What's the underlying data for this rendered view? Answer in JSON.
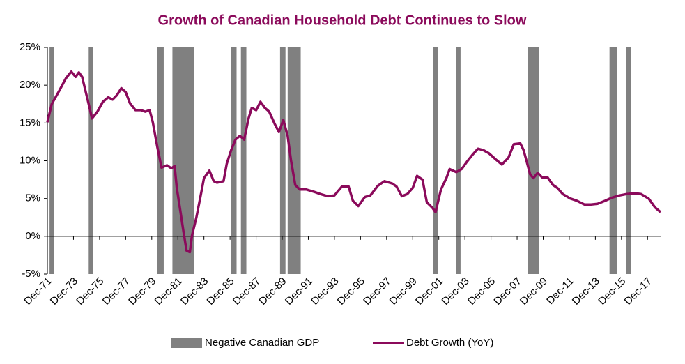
{
  "chart_data": {
    "type": "line",
    "title": "Growth of Canadian Household Debt Continues to Slow",
    "x": [
      "1971-12",
      "1972-04",
      "1972-11",
      "1973-05",
      "1973-10",
      "1974-02",
      "1974-05",
      "1974-08",
      "1974-11",
      "1975-02",
      "1975-05",
      "1975-10",
      "1976-03",
      "1976-08",
      "1976-12",
      "1977-04",
      "1977-08",
      "1977-12",
      "1978-04",
      "1978-09",
      "1979-02",
      "1979-06",
      "1979-10",
      "1980-01",
      "1980-05",
      "1980-09",
      "1981-02",
      "1981-06",
      "1981-09",
      "1981-11",
      "1982-02",
      "1982-05",
      "1982-08",
      "1982-11",
      "1983-01",
      "1983-05",
      "1983-09",
      "1983-12",
      "1984-05",
      "1984-09",
      "1984-12",
      "1985-06",
      "1985-09",
      "1986-01",
      "1986-05",
      "1986-09",
      "1987-01",
      "1987-05",
      "1987-08",
      "1987-12",
      "1988-04",
      "1988-08",
      "1988-12",
      "1989-05",
      "1989-09",
      "1990-01",
      "1990-05",
      "1990-08",
      "1990-12",
      "1991-04",
      "1991-10",
      "1992-05",
      "1992-11",
      "1993-06",
      "1993-12",
      "1994-07",
      "1995-01",
      "1995-05",
      "1995-10",
      "1996-04",
      "1996-09",
      "1997-04",
      "1997-10",
      "1998-05",
      "1998-09",
      "1999-02",
      "1999-07",
      "1999-12",
      "2000-04",
      "2000-09",
      "2001-01",
      "2001-06",
      "2001-09",
      "2002-02",
      "2002-07",
      "2002-10",
      "2003-04",
      "2003-09",
      "2004-02",
      "2004-07",
      "2004-12",
      "2005-05",
      "2005-10",
      "2006-05",
      "2006-10",
      "2007-04",
      "2007-09",
      "2008-03",
      "2008-06",
      "2008-12",
      "2009-03",
      "2009-07",
      "2009-11",
      "2010-04",
      "2010-09",
      "2011-01",
      "2011-06",
      "2012-01",
      "2012-07",
      "2013-02",
      "2013-08",
      "2014-02",
      "2014-09",
      "2015-03",
      "2015-10",
      "2016-05",
      "2016-12",
      "2017-06",
      "2018-01",
      "2018-07",
      "2018-12"
    ],
    "series": [
      {
        "name": "Debt Growth (YoY)",
        "color": "#8b0a5b",
        "values": [
          15.1,
          17.5,
          19.3,
          20.9,
          21.8,
          21.1,
          21.7,
          21.1,
          19.3,
          17.5,
          15.6,
          16.5,
          17.8,
          18.4,
          18.1,
          18.7,
          19.6,
          19.1,
          17.6,
          16.7,
          16.7,
          16.5,
          16.7,
          15.1,
          11.9,
          9.1,
          9.4,
          9.0,
          9.3,
          6.4,
          3.6,
          0.8,
          -1.9,
          -2.1,
          0.1,
          2.5,
          5.4,
          7.7,
          8.7,
          7.3,
          7.1,
          7.3,
          9.6,
          11.4,
          12.8,
          13.3,
          12.8,
          15.6,
          17.0,
          16.7,
          17.8,
          17.0,
          16.5,
          14.9,
          13.8,
          15.4,
          13.3,
          10.1,
          6.8,
          6.2,
          6.2,
          5.9,
          5.6,
          5.3,
          5.4,
          6.6,
          6.6,
          4.7,
          4.0,
          5.2,
          5.4,
          6.7,
          7.3,
          7.0,
          6.6,
          5.3,
          5.6,
          6.4,
          8.0,
          7.5,
          4.5,
          3.8,
          3.2,
          6.2,
          7.7,
          8.9,
          8.5,
          8.9,
          9.9,
          10.8,
          11.6,
          11.4,
          11.0,
          10.1,
          9.5,
          10.4,
          12.2,
          12.3,
          11.4,
          8.2,
          7.7,
          8.4,
          7.8,
          7.8,
          6.8,
          6.4,
          5.6,
          5.0,
          4.7,
          4.2,
          4.2,
          4.3,
          4.7,
          5.1,
          5.4,
          5.6,
          5.7,
          5.6,
          5.0,
          3.8,
          3.2
        ]
      }
    ],
    "shaded": {
      "name": "Negative Canadian GDP",
      "color": "#808080",
      "periods": [
        {
          "start": "1972-02",
          "end": "1972-06"
        },
        {
          "start": "1975-02",
          "end": "1975-06"
        },
        {
          "start": "1980-05",
          "end": "1980-11"
        },
        {
          "start": "1981-07",
          "end": "1983-03"
        },
        {
          "start": "1986-01",
          "end": "1986-06"
        },
        {
          "start": "1986-10",
          "end": "1987-03"
        },
        {
          "start": "1989-10",
          "end": "1990-03"
        },
        {
          "start": "1990-05",
          "end": "1991-05"
        },
        {
          "start": "2001-07",
          "end": "2001-11"
        },
        {
          "start": "2003-04",
          "end": "2003-08"
        },
        {
          "start": "2008-10",
          "end": "2009-08"
        },
        {
          "start": "2015-01",
          "end": "2015-08"
        },
        {
          "start": "2016-04",
          "end": "2016-09"
        }
      ]
    },
    "xlim": [
      "1971-12",
      "2018-12"
    ],
    "xticks": [
      {
        "value": "1971-12",
        "label": "Dec-71"
      },
      {
        "value": "1973-12",
        "label": "Dec-73"
      },
      {
        "value": "1975-12",
        "label": "Dec-75"
      },
      {
        "value": "1977-12",
        "label": "Dec-77"
      },
      {
        "value": "1979-12",
        "label": "Dec-79"
      },
      {
        "value": "1981-12",
        "label": "Dec-81"
      },
      {
        "value": "1983-12",
        "label": "Dec-83"
      },
      {
        "value": "1985-12",
        "label": "Dec-85"
      },
      {
        "value": "1987-12",
        "label": "Dec-87"
      },
      {
        "value": "1989-12",
        "label": "Dec-89"
      },
      {
        "value": "1991-12",
        "label": "Dec-91"
      },
      {
        "value": "1993-12",
        "label": "Dec-93"
      },
      {
        "value": "1995-12",
        "label": "Dec-95"
      },
      {
        "value": "1997-12",
        "label": "Dec-97"
      },
      {
        "value": "1999-12",
        "label": "Dec-99"
      },
      {
        "value": "2001-12",
        "label": "Dec-01"
      },
      {
        "value": "2003-12",
        "label": "Dec-03"
      },
      {
        "value": "2005-12",
        "label": "Dec-05"
      },
      {
        "value": "2007-12",
        "label": "Dec-07"
      },
      {
        "value": "2009-12",
        "label": "Dec-09"
      },
      {
        "value": "2011-12",
        "label": "Dec-11"
      },
      {
        "value": "2013-12",
        "label": "Dec-13"
      },
      {
        "value": "2015-12",
        "label": "Dec-15"
      },
      {
        "value": "2017-12",
        "label": "Dec-17"
      }
    ],
    "ylim": [
      -5,
      25
    ],
    "yticks": [
      {
        "value": -5,
        "label": "-5%"
      },
      {
        "value": 0,
        "label": "0%"
      },
      {
        "value": 5,
        "label": "5%"
      },
      {
        "value": 10,
        "label": "10%"
      },
      {
        "value": 15,
        "label": "15%"
      },
      {
        "value": 20,
        "label": "20%"
      },
      {
        "value": 25,
        "label": "25%"
      }
    ]
  }
}
